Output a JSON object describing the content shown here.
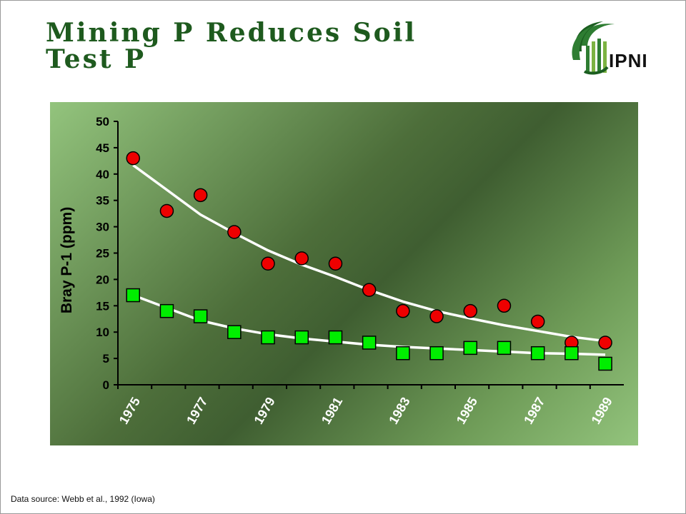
{
  "title_lines": [
    "Mining P Reduces Soil",
    "Test P"
  ],
  "logo": {
    "name": "IPNI",
    "text": "IPNI"
  },
  "source_text": "Data source: Webb et al., 1992 (Iowa)",
  "colors": {
    "title": "#1e5a1e",
    "circle_series": "#ee0000",
    "square_series": "#00ee00",
    "trend": "#ffffff"
  },
  "chart_data": {
    "type": "scatter",
    "title": "",
    "xlabel": "",
    "ylabel": "Bray P-1 (ppm)",
    "ylim": [
      0,
      50
    ],
    "yticks": [
      0,
      5,
      10,
      15,
      20,
      25,
      30,
      35,
      40,
      45,
      50
    ],
    "xlim": [
      1974.5,
      1989.5
    ],
    "xticks": [
      1975,
      1977,
      1979,
      1981,
      1983,
      1985,
      1987,
      1989
    ],
    "grid": false,
    "legend": "none",
    "x": [
      1974.95,
      1975.95,
      1976.95,
      1977.95,
      1978.95,
      1979.95,
      1980.95,
      1981.95,
      1982.95,
      1983.95,
      1984.95,
      1985.95,
      1986.95,
      1987.95,
      1988.95
    ],
    "series": [
      {
        "marker": "circle",
        "values": [
          43,
          33,
          36,
          29,
          23,
          24,
          23,
          18,
          14,
          13,
          14,
          15,
          12,
          8,
          8
        ],
        "trend": [
          41.7,
          37,
          32.3,
          28.8,
          25.5,
          22.8,
          20.5,
          18,
          15.8,
          14,
          12.6,
          11.3,
          10.2,
          9.1,
          8.3
        ]
      },
      {
        "marker": "square",
        "values": [
          17,
          14,
          13,
          10,
          9,
          9,
          9,
          8,
          6,
          6,
          7,
          7,
          6,
          6,
          4
        ],
        "trend": [
          17,
          14.6,
          12.2,
          10.7,
          9.6,
          8.8,
          8.2,
          7.6,
          7.2,
          6.9,
          6.6,
          6.3,
          6,
          5.9,
          5.7
        ]
      }
    ]
  }
}
